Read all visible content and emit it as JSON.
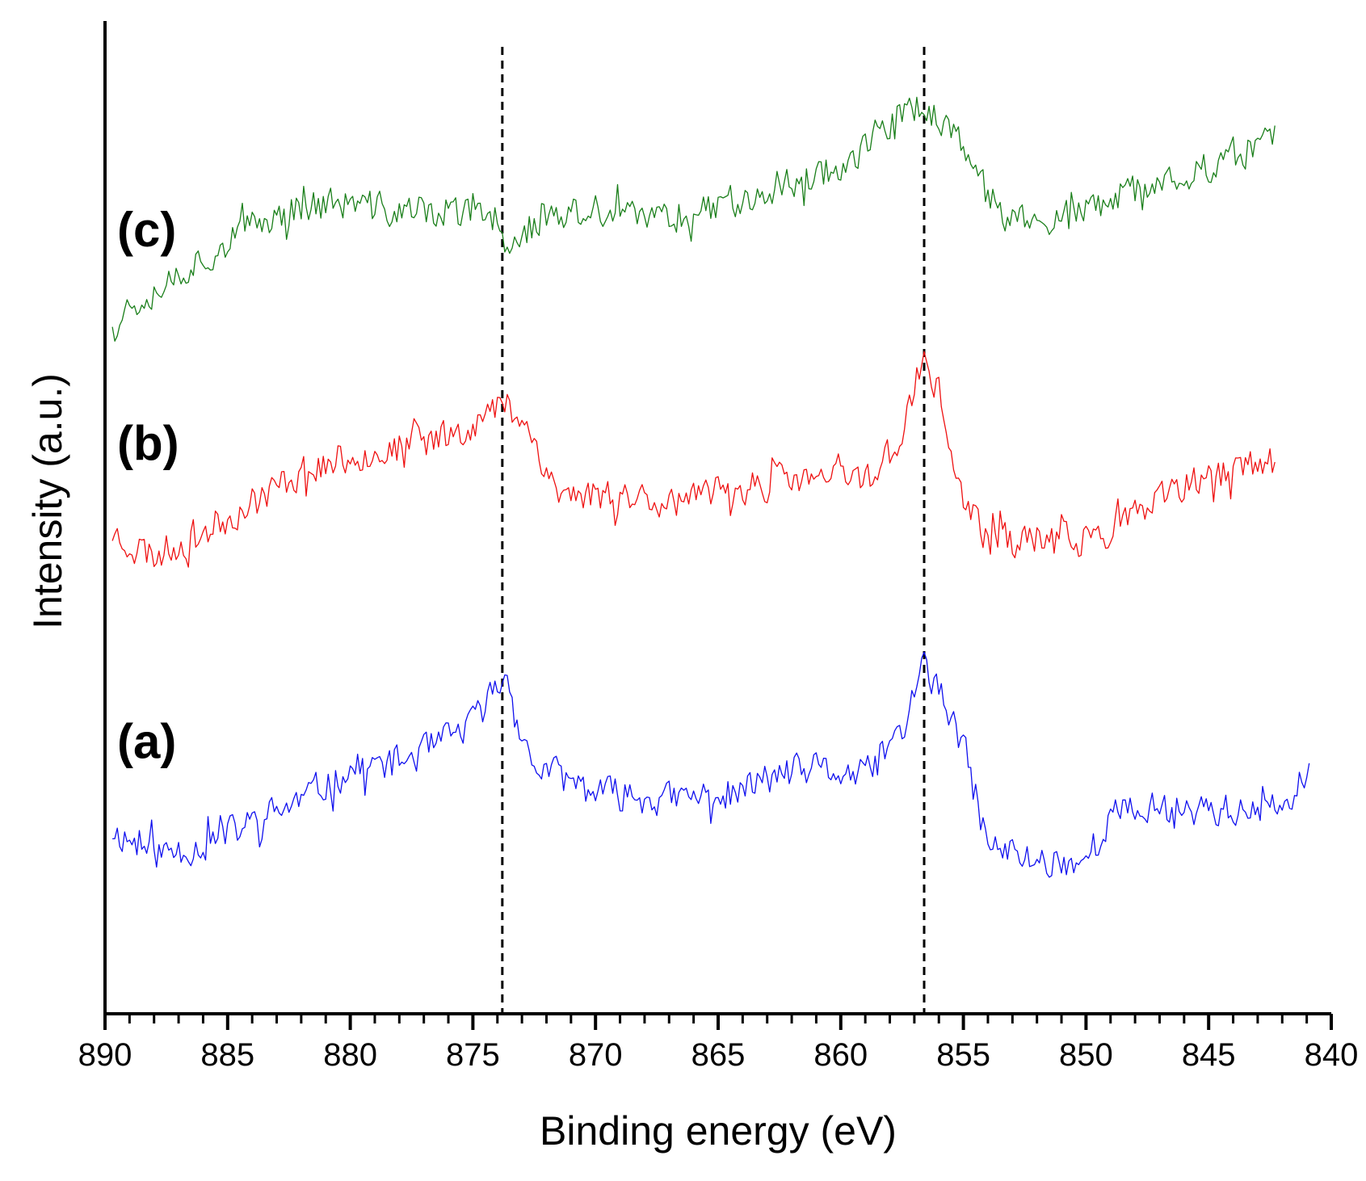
{
  "chart_data": {
    "type": "line",
    "title": "",
    "xlabel": "Binding energy (eV)",
    "ylabel": "Intensity (a.u.)",
    "xlim": [
      890,
      840
    ],
    "x_reversed": true,
    "ylim": [
      0,
      13
    ],
    "x_ticks": [
      890,
      885,
      880,
      875,
      870,
      865,
      860,
      855,
      850,
      845,
      840
    ],
    "x_tick_labels": [
      "890",
      "885",
      "880",
      "875",
      "870",
      "865",
      "860",
      "855",
      "850",
      "845",
      "840"
    ],
    "x_minor_step": 1,
    "y_ticks_shown": false,
    "grid": false,
    "legend": "none",
    "reference_lines": [
      {
        "x": 873.8,
        "style": "dashed",
        "color": "#000000"
      },
      {
        "x": 856.6,
        "style": "dashed",
        "color": "#000000"
      }
    ],
    "noise_amplitude": 0.38,
    "series": [
      {
        "name": "(a)",
        "color": "#1010ee",
        "x_range": [
          889.7,
          840.9
        ],
        "x": [
          889.7,
          888,
          886,
          884,
          882,
          880,
          878,
          876.5,
          875,
          874.2,
          873.8,
          873.4,
          872.8,
          870,
          867,
          864,
          863,
          861,
          859,
          857.5,
          856.6,
          856,
          855,
          854,
          852,
          850,
          849,
          847,
          845,
          843,
          841.6,
          840.9
        ],
        "y": [
          2.4,
          2.1,
          2.2,
          2.5,
          2.8,
          3.2,
          3.3,
          3.5,
          3.8,
          4.2,
          4.4,
          4.3,
          3.3,
          2.9,
          2.8,
          2.9,
          3.1,
          3.2,
          3.1,
          3.7,
          4.6,
          4.2,
          3.5,
          2.2,
          2.0,
          2.0,
          2.6,
          2.7,
          2.7,
          2.6,
          2.8,
          3.2
        ],
        "seed": 11
      },
      {
        "name": "(b)",
        "color": "#ee1111",
        "x_range": [
          889.7,
          842.3
        ],
        "x": [
          889.7,
          888,
          886,
          884,
          882,
          880,
          878,
          876,
          874.5,
          873.8,
          873.2,
          872.5,
          871.5,
          869,
          866,
          864,
          862,
          860,
          858.5,
          857.5,
          856.6,
          856,
          855,
          854,
          852,
          850,
          848,
          846,
          844,
          842.3
        ],
        "y": [
          6.3,
          6.0,
          6.3,
          6.7,
          7.1,
          7.3,
          7.4,
          7.6,
          7.8,
          8.0,
          7.9,
          7.5,
          6.8,
          6.8,
          6.7,
          6.9,
          7.0,
          7.0,
          7.1,
          7.6,
          8.6,
          8.1,
          6.7,
          6.2,
          6.2,
          6.2,
          6.5,
          6.9,
          7.1,
          7.2
        ],
        "seed": 23
      },
      {
        "name": "(c)",
        "color": "#1a7f1a",
        "x_range": [
          889.7,
          842.3
        ],
        "x": [
          889.7,
          888,
          886,
          884,
          882,
          880,
          878,
          876,
          874,
          873.8,
          872,
          870,
          868,
          866,
          864,
          862,
          860,
          858.5,
          857.5,
          856.6,
          855.5,
          854.5,
          853,
          851,
          849,
          847,
          845,
          843.5,
          842.3
        ],
        "y": [
          9.1,
          9.5,
          9.9,
          10.3,
          10.6,
          10.6,
          10.5,
          10.5,
          10.4,
          10.1,
          10.4,
          10.5,
          10.4,
          10.5,
          10.7,
          10.9,
          11.1,
          11.5,
          11.8,
          11.9,
          11.6,
          10.9,
          10.4,
          10.4,
          10.6,
          10.9,
          11.1,
          11.3,
          11.5
        ],
        "seed": 37
      }
    ]
  }
}
